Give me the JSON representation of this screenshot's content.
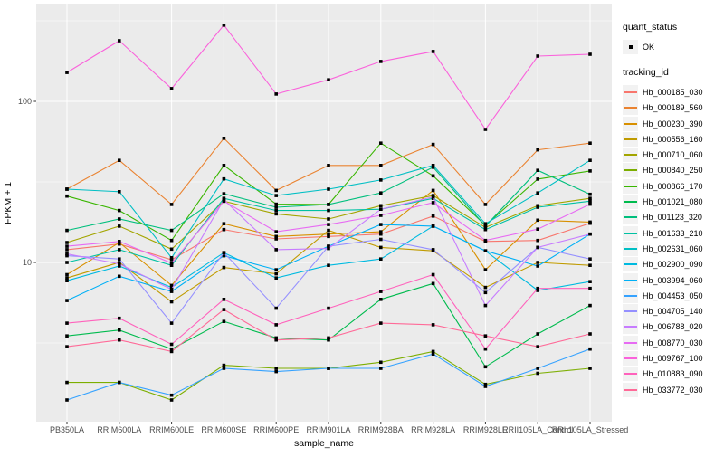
{
  "panel_background": "#EBEBEB",
  "grid_color": "#FFFFFF",
  "axis_text_color": "#4D4D4D",
  "marker_color": "#000000",
  "legend": {
    "quant_status_title": "quant_status",
    "quant_status_items": [
      {
        "label": "OK",
        "marker": "black-point"
      }
    ],
    "tracking_id_title": "tracking_id"
  },
  "chart_data": {
    "type": "line",
    "title": "",
    "xlabel": "sample_name",
    "ylabel": "FPKM + 1",
    "y_scale": "log10",
    "ylim": [
      1,
      400
    ],
    "y_ticks": [
      100,
      10
    ],
    "grid": "on",
    "legend_position": "right",
    "categories": [
      "PB350LA",
      "RRIM600LA",
      "RRIM600LE",
      "RRIM600SE",
      "RRIM600PE",
      "RRIM901LA",
      "RRIM928BA",
      "RRIM928LA",
      "RRIM928LE",
      "RRII105LA_Control",
      "RRII105LA_Stressed"
    ],
    "series": [
      {
        "name": "Hb_000185_030",
        "color": "#F8766D",
        "values": [
          12,
          13,
          10.4,
          16,
          14,
          14.5,
          15,
          19.4,
          13.5,
          13.7,
          17.5
        ]
      },
      {
        "name": "Hb_000189_560",
        "color": "#EA8331",
        "values": [
          28.5,
          43,
          22.9,
          59,
          28,
          40,
          40,
          54,
          22.9,
          50,
          55
        ]
      },
      {
        "name": "Hb_000230_390",
        "color": "#D89000",
        "values": [
          8.4,
          13.3,
          7.2,
          17.4,
          14.5,
          15,
          15.5,
          28,
          9,
          18.3,
          17.8
        ]
      },
      {
        "name": "Hb_000556_160",
        "color": "#C09B00",
        "values": [
          8,
          10,
          5.7,
          9.3,
          8.5,
          15.8,
          12.4,
          11.8,
          7,
          10,
          9.6
        ]
      },
      {
        "name": "Hb_000710_060",
        "color": "#A3A500",
        "values": [
          13.3,
          16.8,
          12.1,
          24,
          20,
          18.6,
          22.5,
          26,
          16.5,
          22.5,
          25
        ]
      },
      {
        "name": "Hb_000840_250",
        "color": "#7CAE00",
        "values": [
          1.8,
          1.8,
          1.4,
          2.3,
          2.2,
          2.2,
          2.4,
          2.8,
          1.75,
          2.05,
          2.2
        ]
      },
      {
        "name": "Hb_000866_170",
        "color": "#39B600",
        "values": [
          25.8,
          21,
          13.7,
          40,
          23,
          22.9,
          55,
          34.5,
          17,
          32.9,
          37
        ]
      },
      {
        "name": "Hb_001021_080",
        "color": "#00BB4E",
        "values": [
          3.5,
          3.8,
          2.9,
          4.3,
          3.4,
          3.3,
          5.9,
          7.4,
          2.25,
          3.6,
          5.4
        ]
      },
      {
        "name": "Hb_001123_320",
        "color": "#00BF7D",
        "values": [
          15.8,
          18.6,
          15.8,
          26.7,
          22,
          22.9,
          27,
          39,
          16.8,
          37.3,
          26.5
        ]
      },
      {
        "name": "Hb_001633_210",
        "color": "#00C1A3",
        "values": [
          10,
          12,
          9.6,
          25,
          21,
          21,
          21.4,
          25,
          16,
          22,
          24
        ]
      },
      {
        "name": "Hb_002631_060",
        "color": "#00BFC4",
        "values": [
          28.5,
          27.5,
          10.7,
          33,
          26,
          28.5,
          32.5,
          40,
          17.4,
          27,
          43
        ]
      },
      {
        "name": "Hb_002900_090",
        "color": "#00BAE0",
        "values": [
          7.7,
          9.5,
          7,
          11.5,
          8,
          9.6,
          10.5,
          16.8,
          11.8,
          6.7,
          7.6
        ]
      },
      {
        "name": "Hb_003994_060",
        "color": "#00B0F6",
        "values": [
          5.8,
          8.2,
          6.6,
          11,
          9,
          12.6,
          17.2,
          16.8,
          11.8,
          9.5,
          15
        ]
      },
      {
        "name": "Hb_004453_050",
        "color": "#35A2FF",
        "values": [
          1.4,
          1.8,
          1.5,
          2.2,
          2.1,
          2.2,
          2.2,
          2.7,
          1.7,
          2.2,
          2.9
        ]
      },
      {
        "name": "Hb_004705_140",
        "color": "#9590FF",
        "values": [
          11,
          10.5,
          4.2,
          11.5,
          5.2,
          12.6,
          13.9,
          12,
          6.5,
          12.4,
          10.5
        ]
      },
      {
        "name": "Hb_006788_020",
        "color": "#C77CFF",
        "values": [
          11.3,
          9.8,
          6.8,
          24.5,
          12,
          12.2,
          21.4,
          25.5,
          5.4,
          12.4,
          15
        ]
      },
      {
        "name": "Hb_008770_030",
        "color": "#E76BF3",
        "values": [
          12.6,
          13.5,
          9.9,
          24,
          15.5,
          17.2,
          19.6,
          23.5,
          13.7,
          16.1,
          23
        ]
      },
      {
        "name": "Hb_009767_100",
        "color": "#FA62DB",
        "values": [
          151,
          238,
          120,
          297,
          111,
          136,
          177,
          204,
          67,
          191,
          196
        ]
      },
      {
        "name": "Hb_010883_090",
        "color": "#FF62BC",
        "values": [
          4.2,
          4.5,
          3.1,
          5.9,
          4.1,
          5.2,
          6.6,
          8.4,
          2.9,
          6.9,
          6.9
        ]
      },
      {
        "name": "Hb_033772_030",
        "color": "#FF6A98",
        "values": [
          3.0,
          3.3,
          2.8,
          5.1,
          3.3,
          3.4,
          4.2,
          4.1,
          3.5,
          3.0,
          3.6
        ]
      }
    ]
  }
}
